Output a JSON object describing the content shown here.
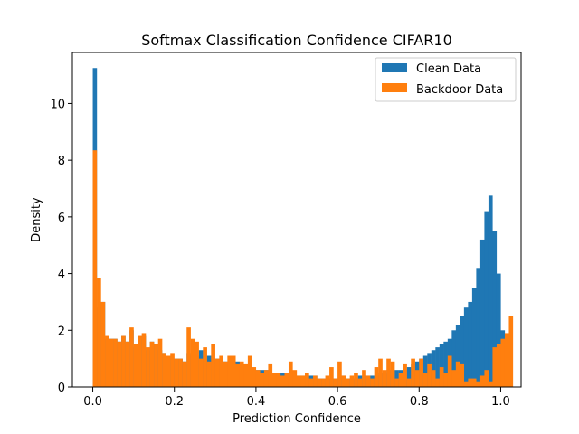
{
  "chart_data": {
    "type": "histogram",
    "title": "Softmax Classification Confidence CIFAR10",
    "xlabel": "Prediction Confidence",
    "ylabel": "Density",
    "xlim": [
      -0.05,
      1.05
    ],
    "ylim": [
      0,
      11.8
    ],
    "xticks": [
      0.0,
      0.2,
      0.4,
      0.6,
      0.8,
      1.0
    ],
    "xtick_labels": [
      "0.0",
      "0.2",
      "0.4",
      "0.6",
      "0.8",
      "1.0"
    ],
    "yticks": [
      0,
      2,
      4,
      6,
      8,
      10
    ],
    "ytick_labels": [
      "0",
      "2",
      "4",
      "6",
      "8",
      "10"
    ],
    "bin_start": 0.0,
    "bin_width": 0.01,
    "grid": false,
    "legend_position": "top-right",
    "series": [
      {
        "name": "Clean Data",
        "color": "#1f77b4",
        "values": [
          11.25,
          2.8,
          3.0,
          1.7,
          1.7,
          1.7,
          1.6,
          1.8,
          1.6,
          2.0,
          1.4,
          1.7,
          1.8,
          1.3,
          1.6,
          1.5,
          1.3,
          1.2,
          1.1,
          1.0,
          1.0,
          1.0,
          0.9,
          1.2,
          1.1,
          1.1,
          1.3,
          1.1,
          1.1,
          1.0,
          1.0,
          0.9,
          0.9,
          0.8,
          0.7,
          0.9,
          0.7,
          0.7,
          0.6,
          0.6,
          0.6,
          0.6,
          0.6,
          0.5,
          0.5,
          0.5,
          0.5,
          0.5,
          0.5,
          0.4,
          0.4,
          0.4,
          0.4,
          0.4,
          0.4,
          0.3,
          0.3,
          0.3,
          0.3,
          0.3,
          0.3,
          0.4,
          0.3,
          0.3,
          0.3,
          0.4,
          0.4,
          0.4,
          0.4,
          0.4,
          0.5,
          0.5,
          0.6,
          0.6,
          0.6,
          0.6,
          0.6,
          0.7,
          0.8,
          0.9,
          1.0,
          1.1,
          1.2,
          1.3,
          1.4,
          1.5,
          1.6,
          1.7,
          2.0,
          2.2,
          2.5,
          2.8,
          3.0,
          3.5,
          4.2,
          5.2,
          6.2,
          6.75,
          5.5,
          4.0,
          2.0
        ],
        "note": ""
      },
      {
        "name": "Backdoor Data",
        "color": "#ff7f0e",
        "values": [
          8.35,
          3.85,
          3.0,
          1.8,
          1.7,
          1.7,
          1.6,
          1.8,
          1.6,
          2.1,
          1.5,
          1.8,
          1.9,
          1.4,
          1.6,
          1.5,
          1.7,
          1.2,
          1.1,
          1.2,
          1.0,
          1.0,
          0.9,
          2.1,
          1.7,
          1.6,
          1.0,
          1.4,
          0.9,
          1.5,
          1.0,
          1.1,
          0.9,
          1.1,
          1.1,
          0.8,
          0.9,
          0.8,
          1.1,
          0.7,
          0.6,
          0.5,
          0.6,
          0.8,
          0.5,
          0.5,
          0.4,
          0.5,
          0.9,
          0.6,
          0.4,
          0.4,
          0.5,
          0.3,
          0.4,
          0.3,
          0.3,
          0.4,
          0.7,
          0.3,
          0.9,
          0.4,
          0.3,
          0.4,
          0.5,
          0.3,
          0.6,
          0.4,
          0.3,
          0.7,
          1.0,
          0.6,
          1.0,
          0.9,
          0.3,
          0.5,
          0.8,
          0.3,
          1.0,
          0.6,
          1.0,
          0.5,
          0.8,
          0.6,
          0.3,
          0.7,
          0.5,
          1.1,
          0.6,
          0.9,
          0.8,
          0.2,
          0.3,
          0.3,
          0.2,
          0.4,
          0.6,
          0.2,
          1.4,
          1.5,
          1.7,
          1.9,
          2.5
        ]
      }
    ]
  }
}
